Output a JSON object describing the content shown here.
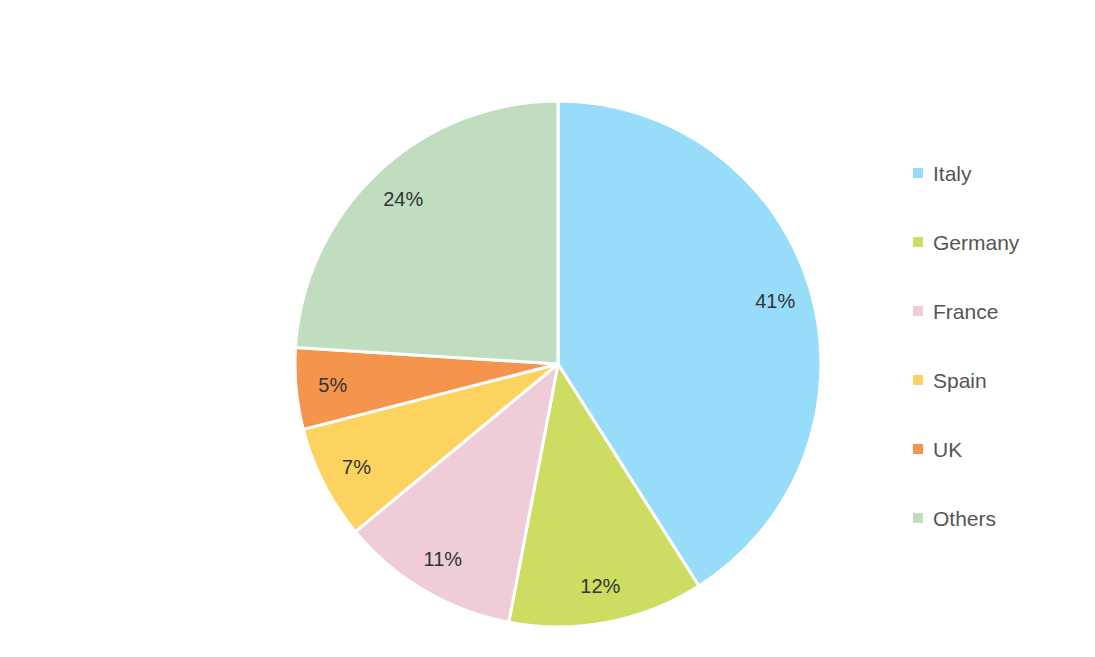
{
  "chart_data": {
    "type": "pie",
    "categories": [
      "Italy",
      "Germany",
      "France",
      "Spain",
      "UK",
      "Others"
    ],
    "values": [
      41,
      12,
      11,
      7,
      5,
      24
    ],
    "value_labels": [
      "41%",
      "12%",
      "11%",
      "7%",
      "5%",
      "24%"
    ],
    "colors": [
      "#97dcf8",
      "#cddd61",
      "#eeccd8",
      "#fcd35f",
      "#f5954d",
      "#c1ddc0"
    ],
    "data_labels": true,
    "legend": "right"
  }
}
